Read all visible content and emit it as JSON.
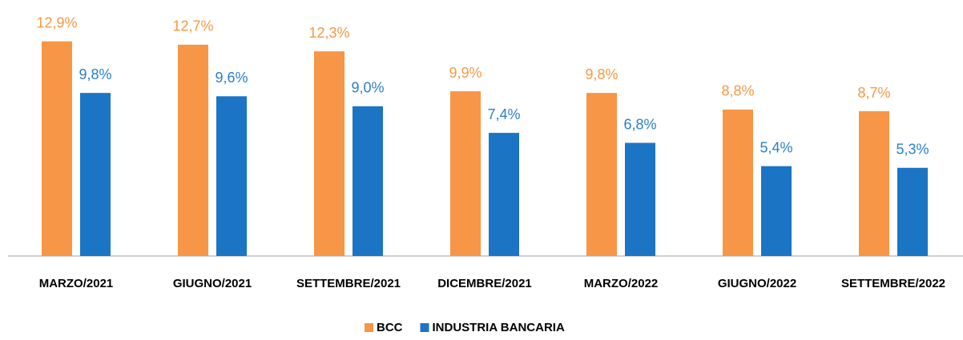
{
  "chart_data": {
    "type": "bar",
    "categories": [
      "MARZO/2021",
      "GIUGNO/2021",
      "SETTEMBRE/2021",
      "DICEMBRE/2021",
      "MARZO/2022",
      "GIUGNO/2022",
      "SETTEMBRE/2022"
    ],
    "series": [
      {
        "name": "BCC",
        "color": "#f79646",
        "label_color": "#f59a45",
        "values": [
          12.9,
          12.7,
          12.3,
          9.9,
          9.8,
          8.8,
          8.7
        ],
        "value_labels": [
          "12,9%",
          "12,7%",
          "12,3%",
          "9,9%",
          "9,8%",
          "8,8%",
          "8,7%"
        ]
      },
      {
        "name": "INDUSTRIA BANCARIA",
        "color": "#1b75c4",
        "label_color": "#2a7fcc",
        "values": [
          9.8,
          9.6,
          9.0,
          7.4,
          6.8,
          5.4,
          5.3
        ],
        "value_labels": [
          "9,8%",
          "9,6%",
          "9,0%",
          "7,4%",
          "6,8%",
          "5,4%",
          "5,3%"
        ]
      }
    ],
    "legend": "bottom"
  }
}
